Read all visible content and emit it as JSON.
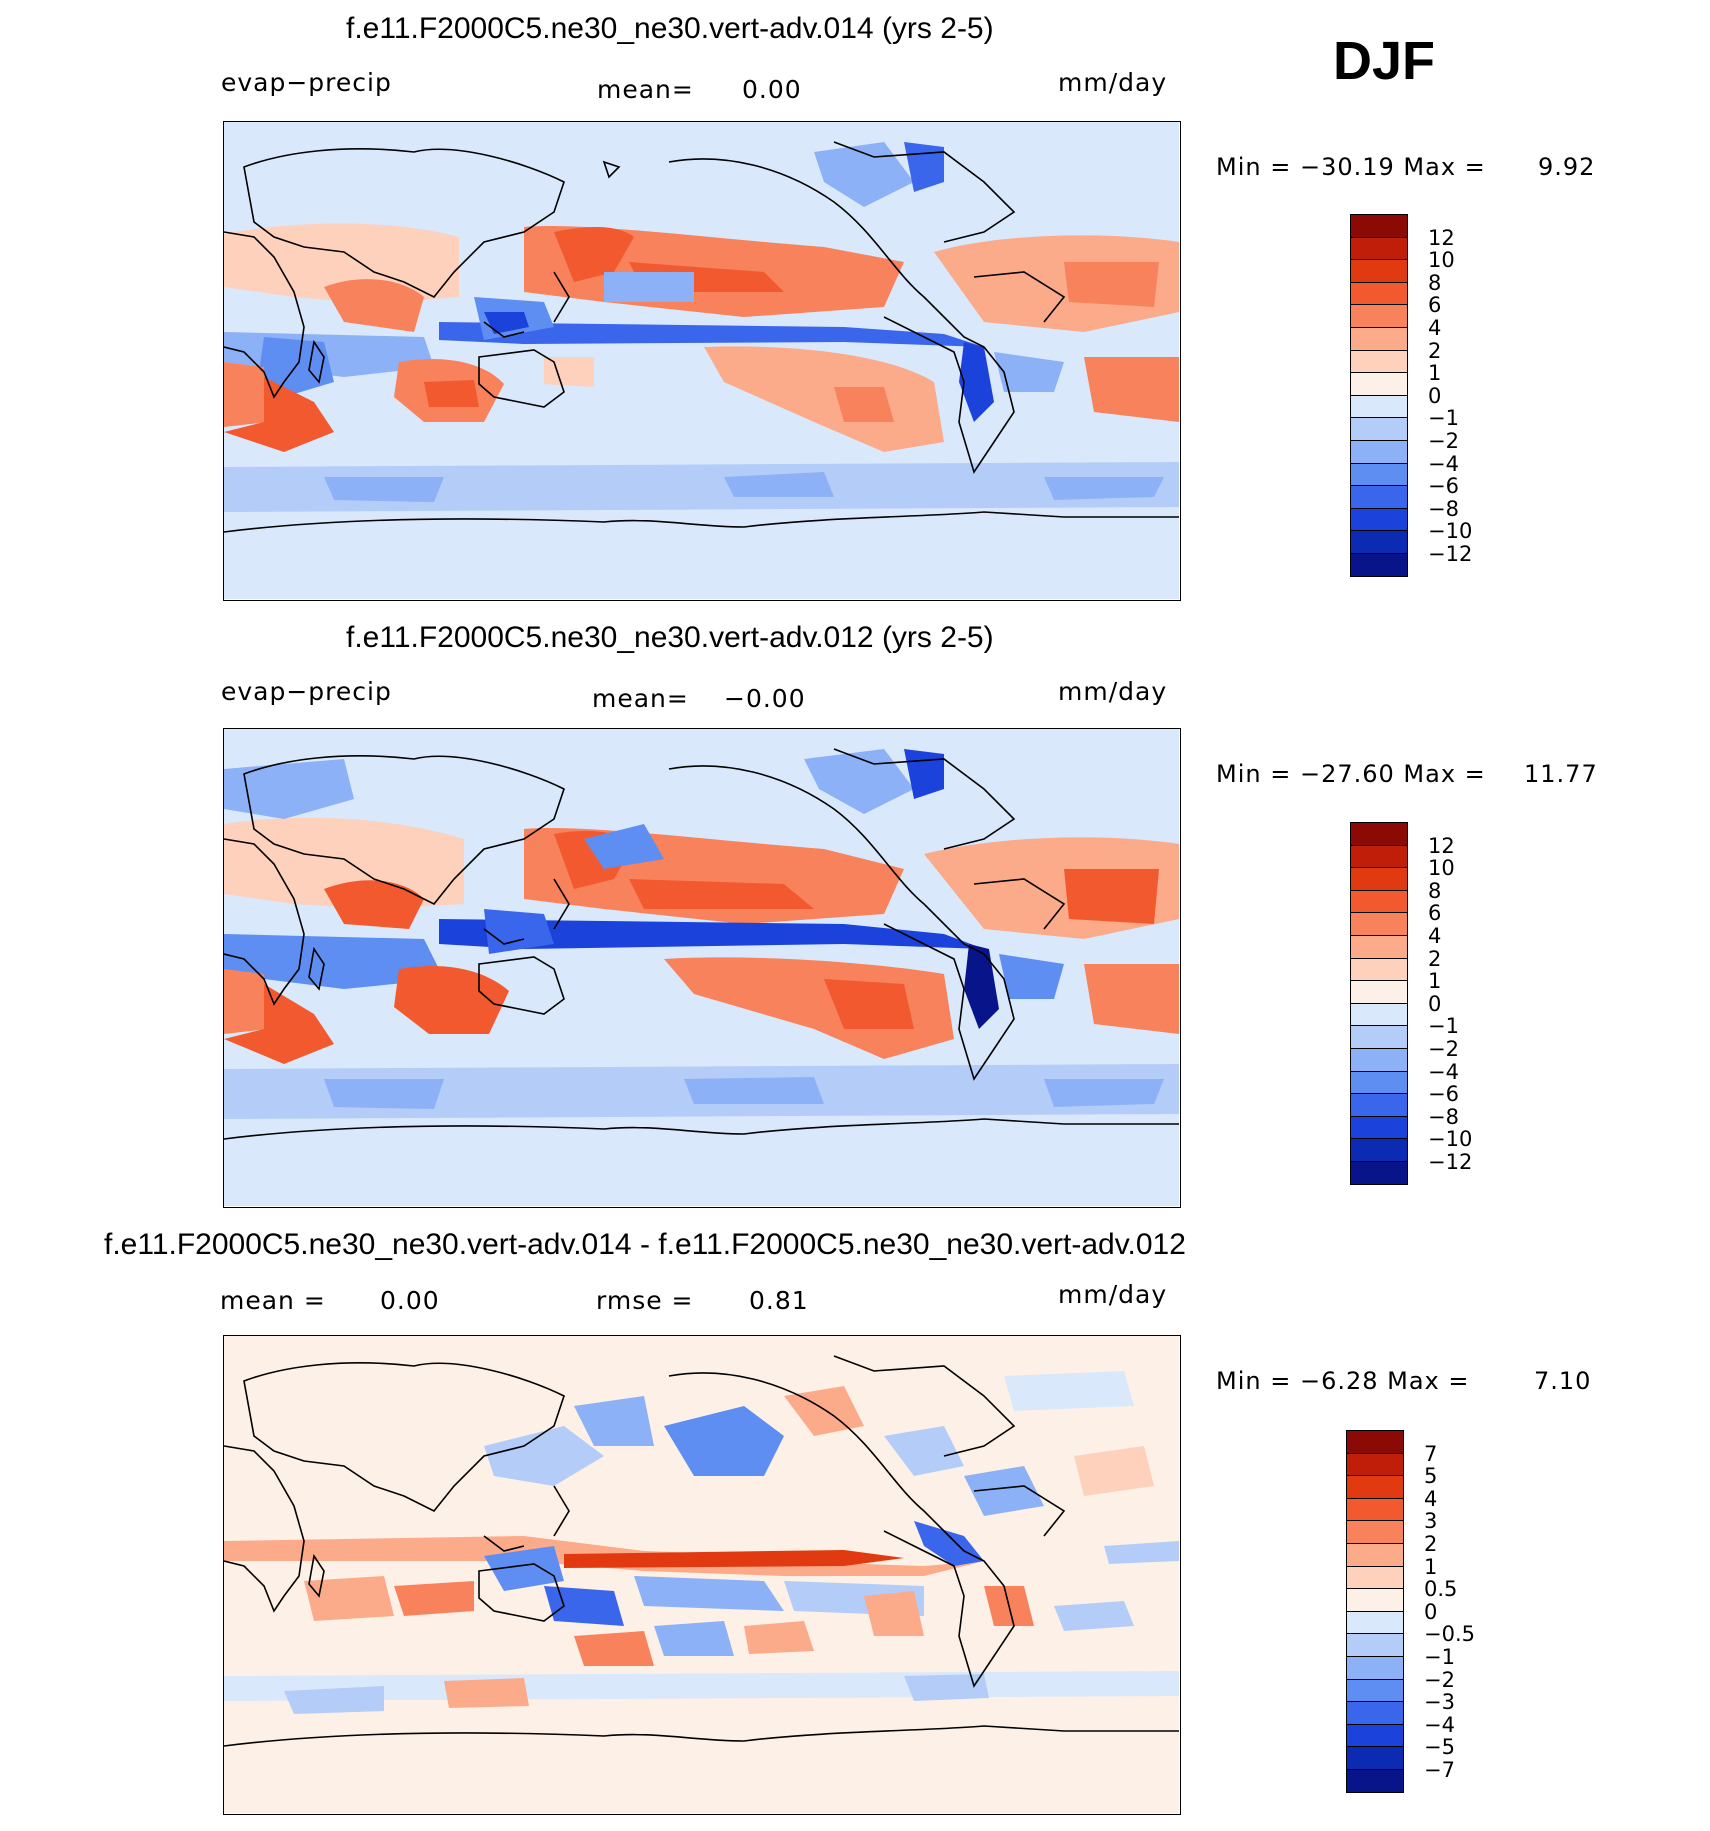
{
  "season": "DJF",
  "panels": [
    {
      "title": "f.e11.F2000C5.ne30_ne30.vert-adv.014 (yrs 2-5)",
      "left_label": "evap−precip",
      "center_label": "mean=",
      "center_value": "0.00",
      "units": "mm/day",
      "min_label": "Min  =  −30.19  Max  =",
      "max_value": "9.92",
      "colorbar": {
        "labels": [
          "12",
          "10",
          "8",
          "6",
          "4",
          "2",
          "1",
          "0",
          "−1",
          "−2",
          "−4",
          "−6",
          "−8",
          "−10",
          "−12"
        ],
        "colors": [
          "#8c0a05",
          "#c11e0a",
          "#e23a10",
          "#f2592e",
          "#f8825c",
          "#fbaa8a",
          "#fdd1bb",
          "#fdf0e6",
          "#d9e8fb",
          "#b3cdf8",
          "#8cb1f6",
          "#5e8ef2",
          "#3966eb",
          "#1b43dc",
          "#0c2bb3",
          "#08158a"
        ]
      }
    },
    {
      "title": "f.e11.F2000C5.ne30_ne30.vert-adv.012 (yrs 2-5)",
      "left_label": "evap−precip",
      "center_label": "mean=",
      "center_value": "−0.00",
      "units": "mm/day",
      "min_label": "Min  =  −27.60  Max  =",
      "max_value": "11.77",
      "colorbar": {
        "labels": [
          "12",
          "10",
          "8",
          "6",
          "4",
          "2",
          "1",
          "0",
          "−1",
          "−2",
          "−4",
          "−6",
          "−8",
          "−10",
          "−12"
        ],
        "colors": [
          "#8c0a05",
          "#c11e0a",
          "#e23a10",
          "#f2592e",
          "#f8825c",
          "#fbaa8a",
          "#fdd1bb",
          "#fdf0e6",
          "#d9e8fb",
          "#b3cdf8",
          "#8cb1f6",
          "#5e8ef2",
          "#3966eb",
          "#1b43dc",
          "#0c2bb3",
          "#08158a"
        ]
      }
    },
    {
      "title": "f.e11.F2000C5.ne30_ne30.vert-adv.014 - f.e11.F2000C5.ne30_ne30.vert-adv.012",
      "left_label": "mean  =",
      "left_value": "0.00",
      "center_label": "rmse  =",
      "center_value": "0.81",
      "units": "mm/day",
      "min_label": "Min  =     −6.28  Max  =",
      "max_value": "7.10",
      "colorbar": {
        "labels": [
          "7",
          "5",
          "4",
          "3",
          "2",
          "1",
          "0.5",
          "0",
          "−0.5",
          "−1",
          "−2",
          "−3",
          "−4",
          "−5",
          "−7"
        ],
        "colors": [
          "#8c0a05",
          "#c11e0a",
          "#e23a10",
          "#f2592e",
          "#f8825c",
          "#fbaa8a",
          "#fdd1bb",
          "#fdf0e6",
          "#d9e8fb",
          "#b3cdf8",
          "#8cb1f6",
          "#5e8ef2",
          "#3966eb",
          "#1b43dc",
          "#0c2bb3",
          "#08158a"
        ]
      }
    }
  ],
  "chart_data": [
    {
      "type": "heatmap",
      "title": "f.e11.F2000C5.ne30_ne30.vert-adv.014 (yrs 2-5)",
      "variable": "evap−precip",
      "units": "mm/day",
      "season": "DJF",
      "mean": 0.0,
      "min": -30.19,
      "max": 9.92,
      "contour_levels": [
        -12,
        -10,
        -8,
        -6,
        -4,
        -2,
        -1,
        0,
        1,
        2,
        4,
        6,
        8,
        10,
        12
      ]
    },
    {
      "type": "heatmap",
      "title": "f.e11.F2000C5.ne30_ne30.vert-adv.012 (yrs 2-5)",
      "variable": "evap−precip",
      "units": "mm/day",
      "season": "DJF",
      "mean": -0.0,
      "min": -27.6,
      "max": 11.77,
      "contour_levels": [
        -12,
        -10,
        -8,
        -6,
        -4,
        -2,
        -1,
        0,
        1,
        2,
        4,
        6,
        8,
        10,
        12
      ]
    },
    {
      "type": "heatmap",
      "title": "f.e11.F2000C5.ne30_ne30.vert-adv.014 - f.e11.F2000C5.ne30_ne30.vert-adv.012",
      "units": "mm/day",
      "season": "DJF",
      "mean": 0.0,
      "rmse": 0.81,
      "min": -6.28,
      "max": 7.1,
      "contour_levels": [
        -7,
        -5,
        -4,
        -3,
        -2,
        -1,
        -0.5,
        0,
        0.5,
        1,
        2,
        3,
        4,
        5,
        7
      ]
    }
  ]
}
